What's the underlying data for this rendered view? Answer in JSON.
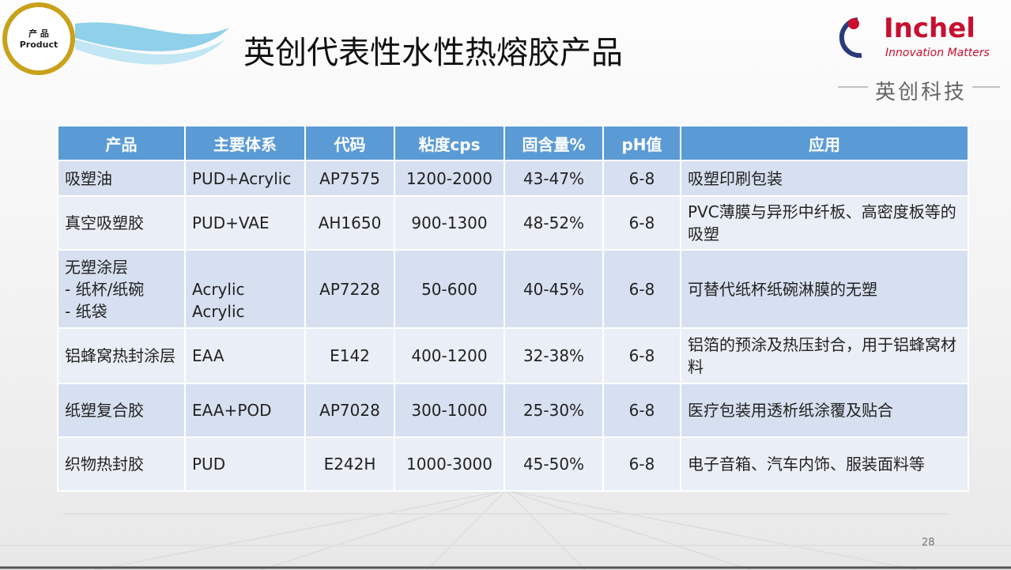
{
  "badge": {
    "line1": "产 品",
    "line2": "Product"
  },
  "header": {
    "title": "英创代表性水性热熔胶产品"
  },
  "logo": {
    "brand": "Inchel",
    "tagline": "Innovation Matters",
    "chinese_name": "英创科技"
  },
  "table": {
    "columns": [
      "产品",
      "主要体系",
      "代码",
      "粘度cps",
      "固含量%",
      "pH值",
      "应用"
    ],
    "rows": [
      [
        "吸塑油",
        "PUD+Acrylic",
        "AP7575",
        "1200-2000",
        "43-47%",
        "6-8",
        "吸塑印刷包装"
      ],
      [
        "真空吸塑胶",
        "PUD+VAE",
        "AH1650",
        "900-1300",
        "48-52%",
        "6-8",
        "PVC薄膜与异形中纤板、高密度板等的吸塑"
      ],
      [
        [
          "无塑涂层",
          "- 纸杯/纸碗",
          "- 纸袋"
        ],
        [
          "Acrylic",
          "Acrylic"
        ],
        "AP7228",
        "50-600",
        "40-45%",
        "6-8",
        "可替代纸杯纸碗淋膜的无塑"
      ],
      [
        "铝蜂窝热封涂层",
        "EAA",
        "E142",
        "400-1200",
        "32-38%",
        "6-8",
        "铝箔的预涂及热压封合，用于铝蜂窝材料"
      ],
      [
        "纸塑复合胶",
        "EAA+POD",
        "AP7028",
        "300-1000",
        "25-30%",
        "6-8",
        "医疗包装用透析纸涂覆及贴合"
      ],
      [
        "织物热封胶",
        "PUD",
        "E242H",
        "1000-3000",
        "45-50%",
        "6-8",
        "电子音箱、汽车内饰、服装面料等"
      ]
    ]
  },
  "footer": {
    "page_number": "28"
  }
}
